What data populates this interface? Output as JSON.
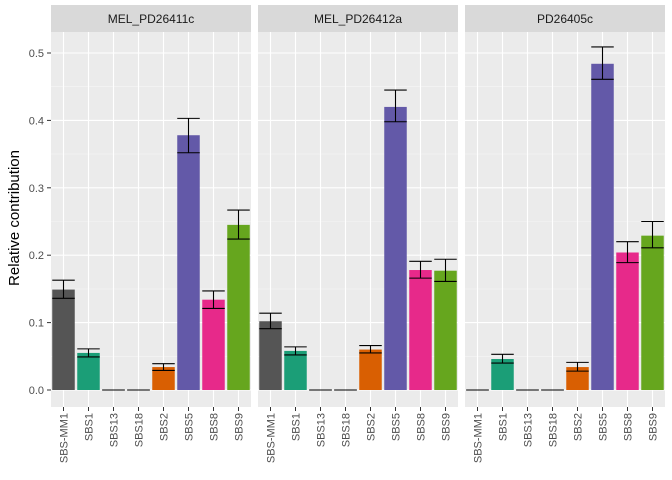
{
  "chart_data": {
    "type": "bar",
    "ylabel": "Relative contribution",
    "xlabel": "",
    "ylim": [
      0,
      0.5
    ],
    "yticks": [
      "0.0",
      "0.1",
      "0.2",
      "0.3",
      "0.4",
      "0.5"
    ],
    "ytick_values": [
      0,
      0.1,
      0.2,
      0.3,
      0.4,
      0.5
    ],
    "categories": [
      "SBS-MM1",
      "SBS1",
      "SBS13",
      "SBS18",
      "SBS2",
      "SBS5",
      "SBS8",
      "SBS9"
    ],
    "colors": [
      "#555555",
      "#1B9E77",
      "#7570B3",
      "#7570B3",
      "#D95F02",
      "#6359A8",
      "#E7298A",
      "#66A61E"
    ],
    "grid": true,
    "panels": [
      {
        "title": "MEL_PD26411c",
        "values": [
          0.149,
          0.055,
          0.0,
          0.0,
          0.034,
          0.378,
          0.134,
          0.245
        ],
        "err_low": [
          0.136,
          0.049,
          0.0,
          0.0,
          0.029,
          0.352,
          0.121,
          0.224
        ],
        "err_high": [
          0.163,
          0.061,
          0.0,
          0.0,
          0.039,
          0.403,
          0.147,
          0.267
        ]
      },
      {
        "title": "MEL_PD26412a",
        "values": [
          0.102,
          0.058,
          0.0,
          0.0,
          0.06,
          0.42,
          0.178,
          0.177
        ],
        "err_low": [
          0.091,
          0.052,
          0.0,
          0.0,
          0.055,
          0.398,
          0.166,
          0.161
        ],
        "err_high": [
          0.114,
          0.064,
          0.0,
          0.0,
          0.066,
          0.445,
          0.191,
          0.194
        ]
      },
      {
        "title": "PD26405c",
        "values": [
          0.0,
          0.046,
          0.0,
          0.0,
          0.034,
          0.484,
          0.204,
          0.229
        ],
        "err_low": [
          0.0,
          0.04,
          0.0,
          0.0,
          0.028,
          0.461,
          0.189,
          0.211
        ],
        "err_high": [
          0.0,
          0.053,
          0.0,
          0.0,
          0.041,
          0.509,
          0.22,
          0.25
        ]
      }
    ]
  }
}
